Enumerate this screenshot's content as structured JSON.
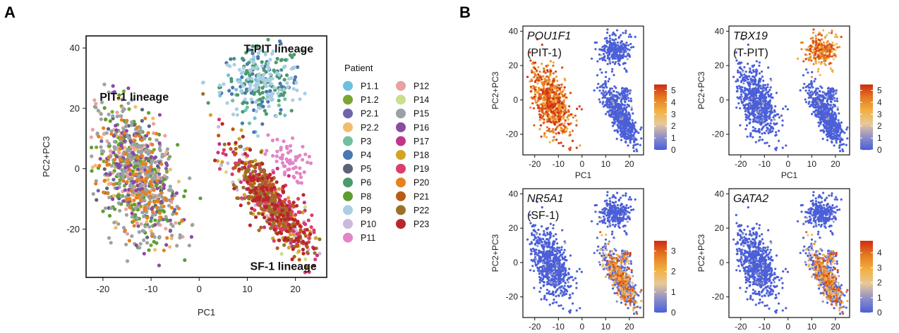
{
  "figure": {
    "panel_a_letter": "A",
    "panel_b_letter": "B"
  },
  "chart_data": [
    {
      "type": "scatter",
      "panel": "A",
      "xlabel": "PC1",
      "ylabel": "PC2+PC3",
      "xlim": [
        -23.5,
        26.5
      ],
      "ylim": [
        -36,
        44
      ],
      "xticks": [
        -20,
        -10,
        0,
        10,
        20
      ],
      "yticks": [
        -20,
        0,
        20,
        40
      ],
      "annotations": [
        {
          "text": "T-PIT lineage",
          "x": 16.5,
          "y": 38.5
        },
        {
          "text": "PIT-1 lineage",
          "x": -13.5,
          "y": 22.5
        },
        {
          "text": "SF-1 lineage",
          "x": 17.5,
          "y": -33.5
        }
      ],
      "legend_title": "Patient",
      "legend_placement": "right",
      "series": [
        {
          "name": "P1.1",
          "color": "#6ec1de",
          "cluster": "tpit",
          "n": 25
        },
        {
          "name": "P1.2",
          "color": "#7aa632",
          "cluster": "pit1",
          "n": 70
        },
        {
          "name": "P2.1",
          "color": "#6e66ab",
          "cluster": "pit1",
          "n": 45
        },
        {
          "name": "P2.2",
          "color": "#f1bc6d",
          "cluster": "pit1",
          "n": 90
        },
        {
          "name": "P3",
          "color": "#70c09e",
          "cluster": "tpit",
          "n": 15
        },
        {
          "name": "P4",
          "color": "#4a78b0",
          "cluster": "tpit",
          "n": 60
        },
        {
          "name": "P5",
          "color": "#5c6377",
          "cluster": "pit1",
          "n": 45
        },
        {
          "name": "P6",
          "color": "#4a9b6b",
          "cluster": "tpit",
          "n": 90
        },
        {
          "name": "P8",
          "color": "#5c9e2e",
          "cluster": "pit1",
          "n": 140
        },
        {
          "name": "P9",
          "color": "#abcee3",
          "cluster": "tpit",
          "n": 110
        },
        {
          "name": "P10",
          "color": "#cab8dd",
          "cluster": "sf1",
          "n": 60
        },
        {
          "name": "P11",
          "color": "#e285c7",
          "cluster": "sf1b",
          "n": 60
        },
        {
          "name": "P12",
          "color": "#e8a2a0",
          "cluster": "pit1",
          "n": 90
        },
        {
          "name": "P14",
          "color": "#c8df8b",
          "cluster": "sf1",
          "n": 25
        },
        {
          "name": "P15",
          "color": "#9aa2a5",
          "cluster": "pit1",
          "n": 260
        },
        {
          "name": "P16",
          "color": "#8a4ba2",
          "cluster": "pit1",
          "n": 90
        },
        {
          "name": "P17",
          "color": "#c1358a",
          "cluster": "sf1",
          "n": 90
        },
        {
          "name": "P18",
          "color": "#d3a423",
          "cluster": "sf1",
          "n": 70
        },
        {
          "name": "P19",
          "color": "#da3e6b",
          "cluster": "sf1",
          "n": 140
        },
        {
          "name": "P20",
          "color": "#e68021",
          "cluster": "pit1",
          "n": 100
        },
        {
          "name": "P21",
          "color": "#b85c16",
          "cluster": "sf1",
          "n": 100
        },
        {
          "name": "P22",
          "color": "#997128",
          "cluster": "sf1",
          "n": 110
        },
        {
          "name": "P23",
          "color": "#b9262b",
          "cluster": "sf1",
          "n": 130
        }
      ],
      "clusters": {
        "pit1": {
          "cx": -13,
          "cy": -2,
          "sx": 4.2,
          "sy": 11,
          "rho": -0.45
        },
        "tpit": {
          "cx": 13,
          "cy": 28,
          "sx": 4.2,
          "sy": 6,
          "rho": 0.05
        },
        "sf1": {
          "cx": 15,
          "cy": -11,
          "sx": 4.2,
          "sy": 9,
          "rho": -0.82
        },
        "sf1b": {
          "cx": 18,
          "cy": 3,
          "sx": 2.2,
          "sy": 3.5,
          "rho": -0.3
        }
      }
    },
    {
      "type": "scatter",
      "panel": "B",
      "subplots": [
        {
          "gene": "POU1F1",
          "sub": "(PIT-1)",
          "high_cluster": "pit1",
          "cbar_max": 5.5,
          "cbar_ticks": [
            0,
            1,
            2,
            3,
            4,
            5
          ]
        },
        {
          "gene": "TBX19",
          "sub": "(T-PIT)",
          "high_cluster": "tpit",
          "cbar_max": 5.5,
          "cbar_ticks": [
            0,
            1,
            2,
            3,
            4,
            5
          ]
        },
        {
          "gene": "NR5A1",
          "sub": "(SF-1)",
          "high_cluster": "sf1",
          "cbar_max": 3.5,
          "cbar_ticks": [
            0,
            1,
            2,
            3
          ]
        },
        {
          "gene": "GATA2",
          "sub": "",
          "high_cluster": "sf1",
          "cbar_max": 4.8,
          "cbar_ticks": [
            0,
            1,
            2,
            3,
            4
          ]
        }
      ],
      "xlabel": "PC1",
      "ylabel": "PC2+PC3",
      "xlim": [
        -25,
        26
      ],
      "ylim": [
        -32,
        43
      ],
      "xticks": [
        -20,
        -10,
        0,
        10,
        20
      ],
      "yticks": [
        -20,
        0,
        20,
        40
      ],
      "colormap": [
        "#4a5fd8",
        "#8f8fc8",
        "#e8c898",
        "#f2b040",
        "#e47a22",
        "#d02a12"
      ]
    }
  ]
}
